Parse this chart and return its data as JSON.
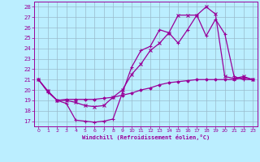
{
  "xlabel": "Windchill (Refroidissement éolien,°C)",
  "xlim": [
    -0.5,
    23.5
  ],
  "ylim": [
    16.5,
    28.5
  ],
  "yticks": [
    17,
    18,
    19,
    20,
    21,
    22,
    23,
    24,
    25,
    26,
    27,
    28
  ],
  "xticks": [
    0,
    1,
    2,
    3,
    4,
    5,
    6,
    7,
    8,
    9,
    10,
    11,
    12,
    13,
    14,
    15,
    16,
    17,
    18,
    19,
    20,
    21,
    22,
    23
  ],
  "bg_color": "#bbeeff",
  "line_color": "#990099",
  "grid_color": "#99bbcc",
  "line1_x": [
    0,
    1,
    2,
    3,
    4,
    5,
    6,
    7,
    8,
    9,
    10,
    11,
    12,
    13,
    14,
    15,
    16,
    17,
    18,
    19,
    20,
    21,
    22,
    23
  ],
  "line1_y": [
    21.0,
    19.8,
    19.0,
    18.7,
    17.1,
    17.0,
    16.9,
    17.0,
    17.2,
    19.7,
    22.2,
    23.8,
    24.2,
    25.8,
    25.5,
    24.5,
    25.8,
    27.2,
    25.2,
    26.8,
    25.4,
    21.3,
    21.0,
    21.0
  ],
  "line2_x": [
    0,
    1,
    2,
    3,
    4,
    5,
    6,
    7,
    8,
    9,
    10,
    11,
    12,
    13,
    14,
    15,
    16,
    17,
    18,
    19,
    20,
    21,
    22,
    23
  ],
  "line2_y": [
    21.0,
    19.9,
    19.0,
    19.0,
    18.8,
    18.5,
    18.4,
    18.5,
    19.3,
    20.0,
    21.5,
    22.5,
    23.8,
    24.5,
    25.5,
    27.2,
    27.2,
    27.2,
    28.0,
    27.3,
    21.3,
    21.1,
    21.3,
    21.0
  ],
  "line3_x": [
    0,
    1,
    2,
    3,
    4,
    5,
    6,
    7,
    8,
    9,
    10,
    11,
    12,
    13,
    14,
    15,
    16,
    17,
    18,
    19,
    20,
    21,
    22,
    23
  ],
  "line3_y": [
    21.0,
    19.9,
    19.0,
    19.1,
    19.1,
    19.1,
    19.1,
    19.2,
    19.3,
    19.5,
    19.7,
    20.0,
    20.2,
    20.5,
    20.7,
    20.8,
    20.9,
    21.0,
    21.0,
    21.0,
    21.0,
    21.0,
    21.2,
    21.0
  ]
}
